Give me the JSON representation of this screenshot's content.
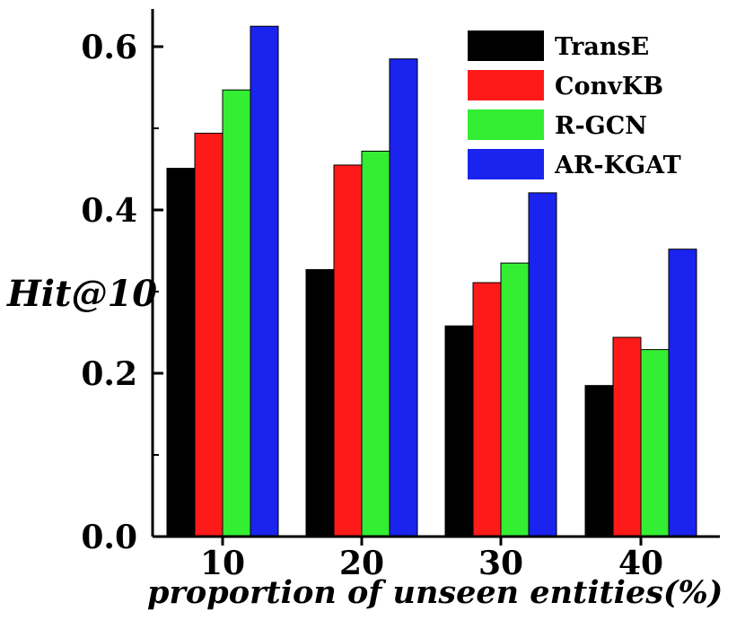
{
  "chart_data": {
    "type": "bar",
    "title": "",
    "xlabel": "proportion of unseen entities(%)",
    "ylabel": "Hit@10",
    "categories": [
      "10",
      "20",
      "30",
      "40"
    ],
    "ylim": [
      0.0,
      0.65
    ],
    "yticks": [
      {
        "value": 0.0,
        "label": "0.0"
      },
      {
        "value": 0.2,
        "label": "0.2"
      },
      {
        "value": 0.4,
        "label": "0.4"
      },
      {
        "value": 0.6,
        "label": "0.6"
      }
    ],
    "series": [
      {
        "name": "TransE",
        "color": "#000000",
        "values": [
          0.451,
          0.327,
          0.258,
          0.185
        ]
      },
      {
        "name": "ConvKB",
        "color": "#ff1a1a",
        "values": [
          0.494,
          0.455,
          0.311,
          0.244
        ]
      },
      {
        "name": "R-GCN",
        "color": "#33ee33",
        "values": [
          0.547,
          0.472,
          0.335,
          0.229
        ]
      },
      {
        "name": "AR-KGAT",
        "color": "#1a24ee",
        "values": [
          0.625,
          0.585,
          0.421,
          0.352
        ]
      }
    ],
    "legend_position": "top-right",
    "grid": false
  }
}
